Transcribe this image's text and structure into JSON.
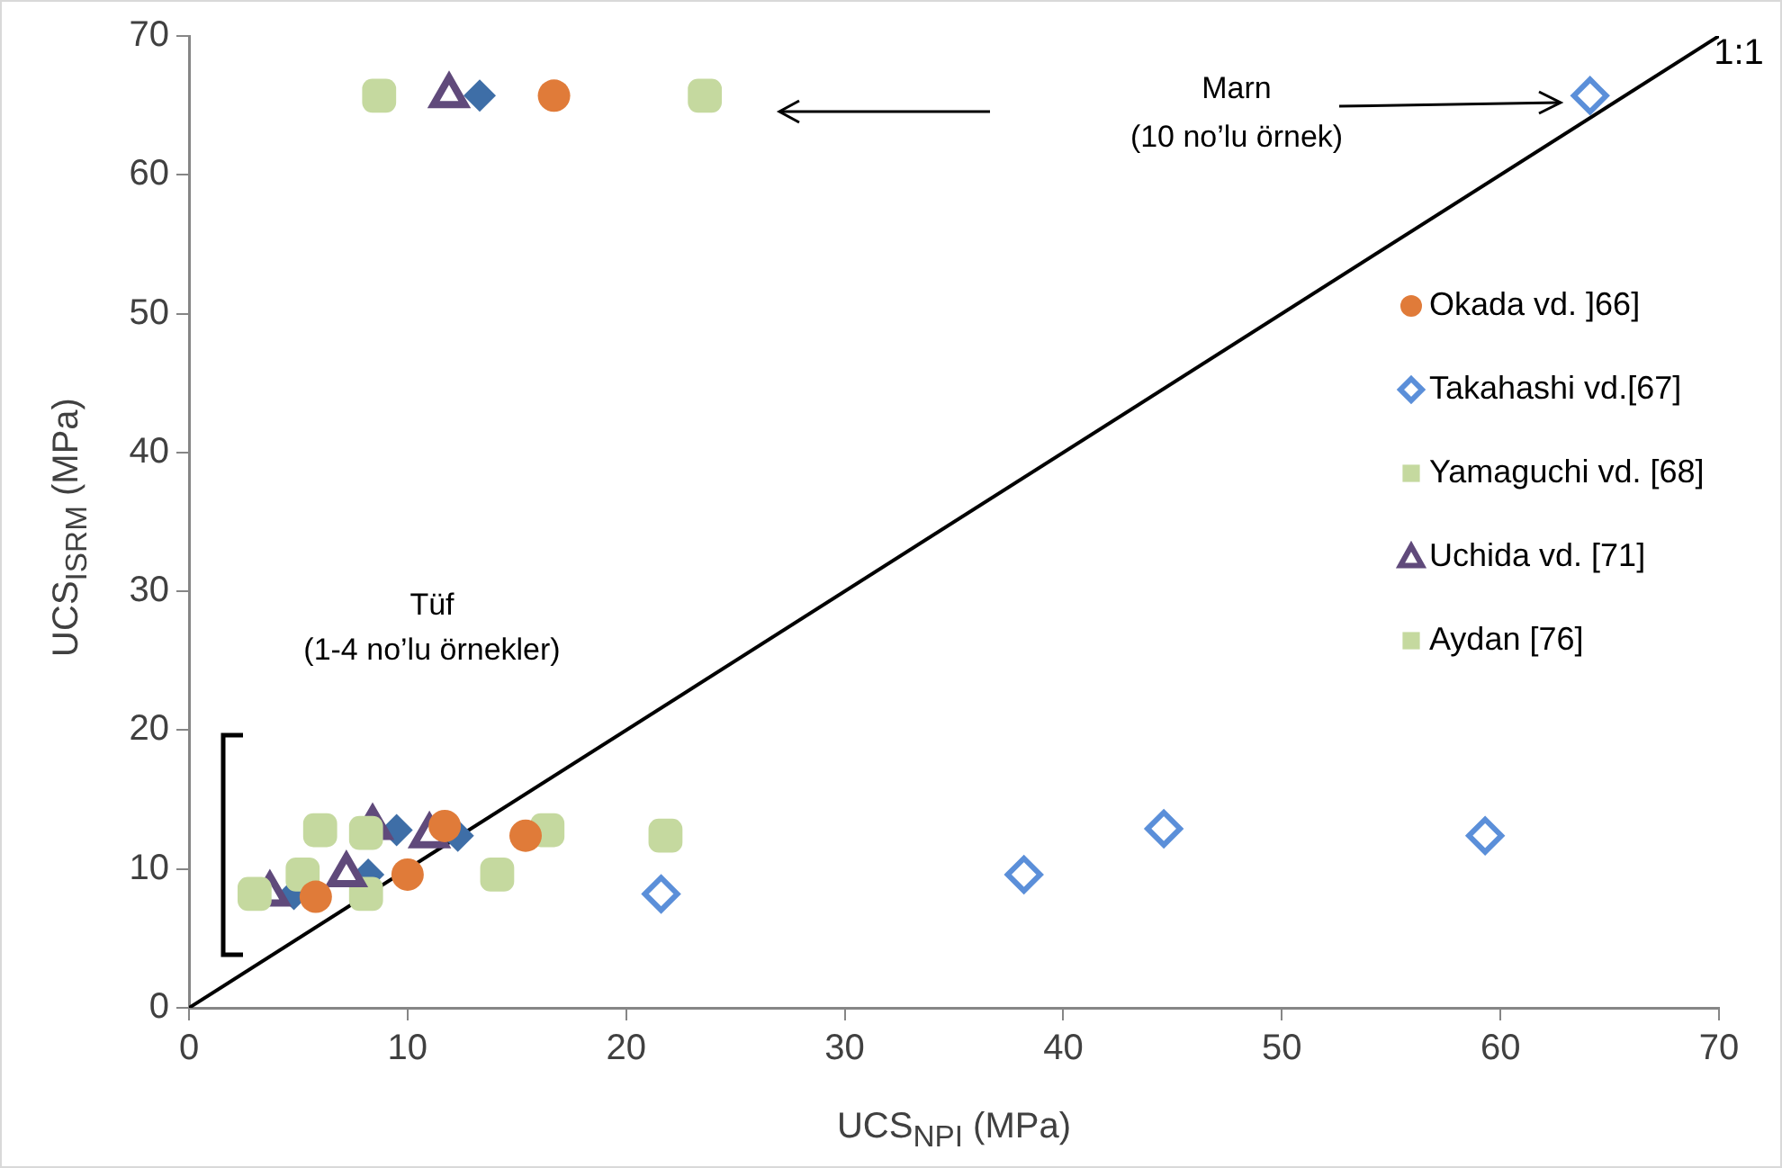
{
  "chart_data": {
    "type": "scatter",
    "xlabel": "UCS$_{NPI}$ (MPa)",
    "ylabel": "UCS$_{ISRM}$ (MPa)",
    "xlim": [
      0,
      70
    ],
    "ylim": [
      0,
      70
    ],
    "xticks": [
      0,
      10,
      20,
      30,
      40,
      50,
      60,
      70
    ],
    "yticks": [
      0,
      10,
      20,
      30,
      40,
      50,
      60,
      70
    ],
    "grid": false,
    "legend": "right",
    "annotations": [
      "Marn",
      "(10 no’lu örnek)",
      "Tüf",
      "(1-4 no’lu örnekler)",
      "1:1"
    ],
    "series": [
      {
        "name": "Okada vd. ]66]",
        "color": "#e07b39",
        "marker": "circle",
        "x": [
          5.8,
          10.0,
          11.7,
          15.4,
          16.7
        ],
        "values": [
          8.0,
          9.6,
          13.1,
          12.4,
          65.7
        ]
      },
      {
        "name": "Takahashi vd.[67]",
        "color": "#5b8fd9",
        "marker": "diamond",
        "x": [
          21.6,
          38.2,
          44.6,
          59.3,
          64.1
        ],
        "values": [
          8.2,
          9.6,
          12.9,
          12.4,
          65.7
        ]
      },
      {
        "name": "Yamaguchi vd. [68]",
        "color": "#c5d99f",
        "marker": "square",
        "x": [
          3.0,
          5.2,
          6.0,
          8.1,
          8.7
        ],
        "values": [
          8.2,
          9.6,
          12.8,
          12.6,
          65.7
        ]
      },
      {
        "name": "Uchida vd. [71]",
        "color": "#604a7b",
        "marker": "triangle",
        "x": [
          3.7,
          7.2,
          8.4,
          11.0,
          11.9
        ],
        "values": [
          8.2,
          9.6,
          13.0,
          12.4,
          65.7
        ]
      },
      {
        "name": "Aydan [76]",
        "color": "#c5d99f",
        "marker": "square",
        "x": [
          8.1,
          14.1,
          16.4,
          21.8,
          23.6
        ],
        "values": [
          8.2,
          9.6,
          12.8,
          12.4,
          65.7
        ]
      },
      {
        "color": "#3e6ea7",
        "marker": "diamond",
        "x": [
          4.8,
          8.2,
          9.5,
          12.3,
          13.3
        ],
        "values": [
          8.2,
          9.6,
          12.8,
          12.4,
          65.7
        ]
      },
      {
        "type": "line",
        "color": "#000000",
        "marker": "none",
        "x": [
          0,
          70
        ],
        "values": [
          0,
          70
        ]
      }
    ]
  }
}
